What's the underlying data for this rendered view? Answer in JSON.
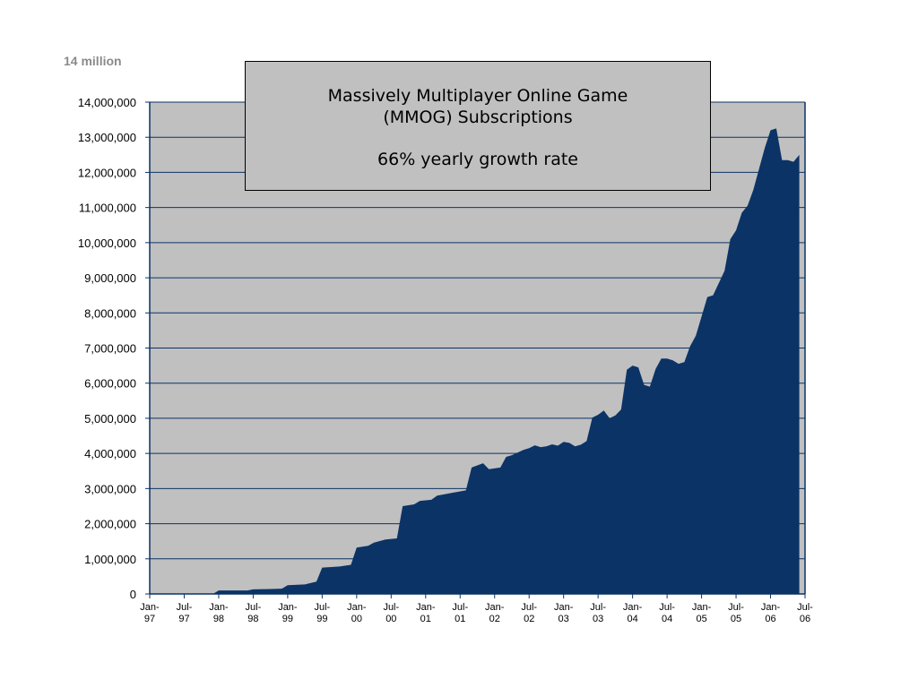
{
  "corner_label": "14 million",
  "chart_data": {
    "type": "area",
    "title_lines": [
      "Massively Multiplayer Online Game",
      "(MMOG) Subscriptions"
    ],
    "subtitle": "66% yearly growth rate",
    "xlabel": "",
    "ylabel": "",
    "ylim": [
      0,
      14000000
    ],
    "grid": true,
    "colors": {
      "fill": "#0b3366",
      "plot_bg": "#c0c0c0",
      "grid": "#0b3366",
      "axis": "#0b3366"
    },
    "y_ticks": [
      {
        "value": 0,
        "label": "0"
      },
      {
        "value": 1000000,
        "label": "1,000,000"
      },
      {
        "value": 2000000,
        "label": "2,000,000"
      },
      {
        "value": 3000000,
        "label": "3,000,000"
      },
      {
        "value": 4000000,
        "label": "4,000,000"
      },
      {
        "value": 5000000,
        "label": "5,000,000"
      },
      {
        "value": 6000000,
        "label": "6,000,000"
      },
      {
        "value": 7000000,
        "label": "7,000,000"
      },
      {
        "value": 8000000,
        "label": "8,000,000"
      },
      {
        "value": 9000000,
        "label": "9,000,000"
      },
      {
        "value": 10000000,
        "label": "10,000,000"
      },
      {
        "value": 11000000,
        "label": "11,000,000"
      },
      {
        "value": 12000000,
        "label": "12,000,000"
      },
      {
        "value": 13000000,
        "label": "13,000,000"
      },
      {
        "value": 14000000,
        "label": "14,000,000"
      }
    ],
    "x_ticks": [
      {
        "month": 0,
        "line1": "Jan-",
        "line2": "97"
      },
      {
        "month": 6,
        "line1": "Jul-",
        "line2": "97"
      },
      {
        "month": 12,
        "line1": "Jan-",
        "line2": "98"
      },
      {
        "month": 18,
        "line1": "Jul-",
        "line2": "98"
      },
      {
        "month": 24,
        "line1": "Jan-",
        "line2": "99"
      },
      {
        "month": 30,
        "line1": "Jul-",
        "line2": "99"
      },
      {
        "month": 36,
        "line1": "Jan-",
        "line2": "00"
      },
      {
        "month": 42,
        "line1": "Jul-",
        "line2": "00"
      },
      {
        "month": 48,
        "line1": "Jan-",
        "line2": "01"
      },
      {
        "month": 54,
        "line1": "Jul-",
        "line2": "01"
      },
      {
        "month": 60,
        "line1": "Jan-",
        "line2": "02"
      },
      {
        "month": 66,
        "line1": "Jul-",
        "line2": "02"
      },
      {
        "month": 72,
        "line1": "Jan-",
        "line2": "03"
      },
      {
        "month": 78,
        "line1": "Jul-",
        "line2": "03"
      },
      {
        "month": 84,
        "line1": "Jan-",
        "line2": "04"
      },
      {
        "month": 90,
        "line1": "Jul-",
        "line2": "04"
      },
      {
        "month": 96,
        "line1": "Jan-",
        "line2": "05"
      },
      {
        "month": 102,
        "line1": "Jul-",
        "line2": "05"
      },
      {
        "month": 108,
        "line1": "Jan-",
        "line2": "06"
      },
      {
        "month": 114,
        "line1": "Jul-",
        "line2": "06"
      }
    ],
    "series": [
      {
        "values": [
          [
            0,
            0
          ],
          [
            11,
            0
          ],
          [
            12,
            100000
          ],
          [
            17,
            100000
          ],
          [
            18,
            130000
          ],
          [
            21,
            140000
          ],
          [
            23,
            150000
          ],
          [
            24,
            250000
          ],
          [
            27,
            270000
          ],
          [
            29,
            350000
          ],
          [
            30,
            750000
          ],
          [
            33,
            780000
          ],
          [
            35,
            830000
          ],
          [
            36,
            1320000
          ],
          [
            38,
            1370000
          ],
          [
            39,
            1460000
          ],
          [
            41,
            1550000
          ],
          [
            43,
            1580000
          ],
          [
            44,
            2500000
          ],
          [
            46,
            2550000
          ],
          [
            47,
            2650000
          ],
          [
            49,
            2680000
          ],
          [
            50,
            2800000
          ],
          [
            52,
            2860000
          ],
          [
            55,
            2950000
          ],
          [
            56,
            3600000
          ],
          [
            58,
            3720000
          ],
          [
            59,
            3550000
          ],
          [
            61,
            3600000
          ],
          [
            62,
            3900000
          ],
          [
            63,
            3950000
          ],
          [
            65,
            4100000
          ],
          [
            66,
            4150000
          ],
          [
            67,
            4230000
          ],
          [
            68,
            4180000
          ],
          [
            69,
            4200000
          ],
          [
            70,
            4260000
          ],
          [
            71,
            4220000
          ],
          [
            72,
            4330000
          ],
          [
            73,
            4300000
          ],
          [
            74,
            4200000
          ],
          [
            75,
            4250000
          ],
          [
            76,
            4350000
          ],
          [
            77,
            5020000
          ],
          [
            78,
            5100000
          ],
          [
            79,
            5220000
          ],
          [
            80,
            5000000
          ],
          [
            81,
            5080000
          ],
          [
            82,
            5250000
          ],
          [
            83,
            6380000
          ],
          [
            84,
            6500000
          ],
          [
            85,
            6450000
          ],
          [
            86,
            5950000
          ],
          [
            87,
            5900000
          ],
          [
            88,
            6400000
          ],
          [
            89,
            6700000
          ],
          [
            90,
            6700000
          ],
          [
            91,
            6650000
          ],
          [
            92,
            6550000
          ],
          [
            93,
            6600000
          ],
          [
            94,
            7050000
          ],
          [
            95,
            7350000
          ],
          [
            96,
            7900000
          ],
          [
            97,
            8450000
          ],
          [
            98,
            8500000
          ],
          [
            99,
            8850000
          ],
          [
            100,
            9200000
          ],
          [
            101,
            10100000
          ],
          [
            102,
            10350000
          ],
          [
            103,
            10850000
          ],
          [
            104,
            11050000
          ],
          [
            105,
            11500000
          ],
          [
            106,
            12100000
          ],
          [
            107,
            12700000
          ],
          [
            108,
            13200000
          ],
          [
            109,
            13250000
          ],
          [
            110,
            12350000
          ],
          [
            111,
            12350000
          ],
          [
            112,
            12300000
          ],
          [
            113,
            12500000
          ]
        ]
      }
    ]
  }
}
